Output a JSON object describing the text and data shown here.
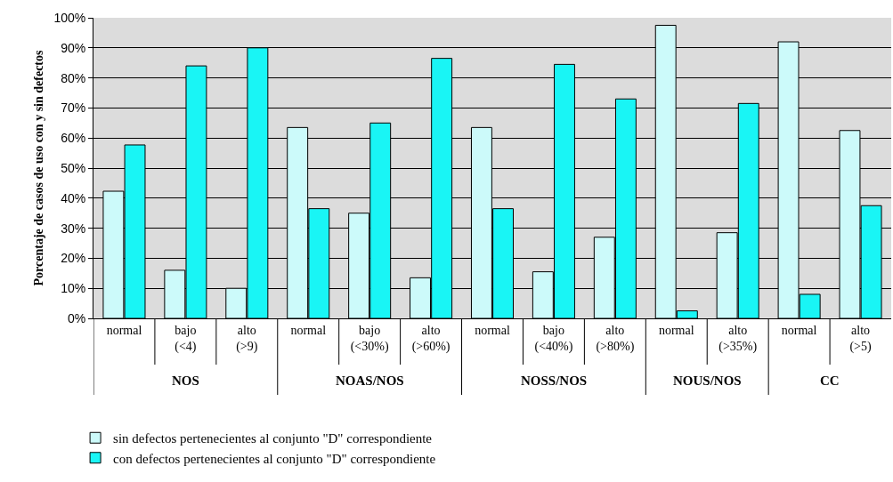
{
  "chart_data": {
    "type": "bar",
    "ylabel": "Porcentaje de casos de uso con y sin defectos",
    "categories": [
      "normal",
      "bajo (<4)",
      "alto (>9)",
      "normal",
      "bajo (<30%)",
      "alto (>60%)",
      "normal",
      "bajo (<40%)",
      "alto (>80%)",
      "normal",
      "alto (>35%)",
      "normal",
      "alto (>5)"
    ],
    "series": [
      {
        "name": "sin defectos pertenecientes al conjunto \"D\" correspondiente",
        "color": "#ccfafa",
        "values": [
          42.3,
          16,
          10,
          63.5,
          35,
          13.5,
          63.5,
          15.5,
          27,
          97.5,
          28.5,
          92,
          62.5
        ]
      },
      {
        "name": "con defectos pertenecientes al conjunto \"D\" correspondiente",
        "color": "#19f5f5",
        "values": [
          57.7,
          84,
          90,
          36.5,
          65,
          86.5,
          36.5,
          84.5,
          73,
          2.5,
          71.5,
          8,
          37.5
        ]
      }
    ],
    "annotations": [
      "NOS",
      "NOAS/NOS",
      "NOSS/NOS",
      "NOUS/NOS",
      "CC"
    ],
    "ylim": [
      0,
      100
    ],
    "yticks": [
      {
        "value": 0,
        "label": "0%"
      },
      {
        "value": 10,
        "label": "10%"
      },
      {
        "value": 20,
        "label": "20%"
      },
      {
        "value": 30,
        "label": "30%"
      },
      {
        "value": 40,
        "label": "40%"
      },
      {
        "value": 50,
        "label": "50%"
      },
      {
        "value": 60,
        "label": "60%"
      },
      {
        "value": 70,
        "label": "70%"
      },
      {
        "value": 80,
        "label": "80%"
      },
      {
        "value": 90,
        "label": "90%"
      },
      {
        "value": 100,
        "label": "100%"
      }
    ],
    "grid": "y",
    "legend": "bottom left"
  }
}
